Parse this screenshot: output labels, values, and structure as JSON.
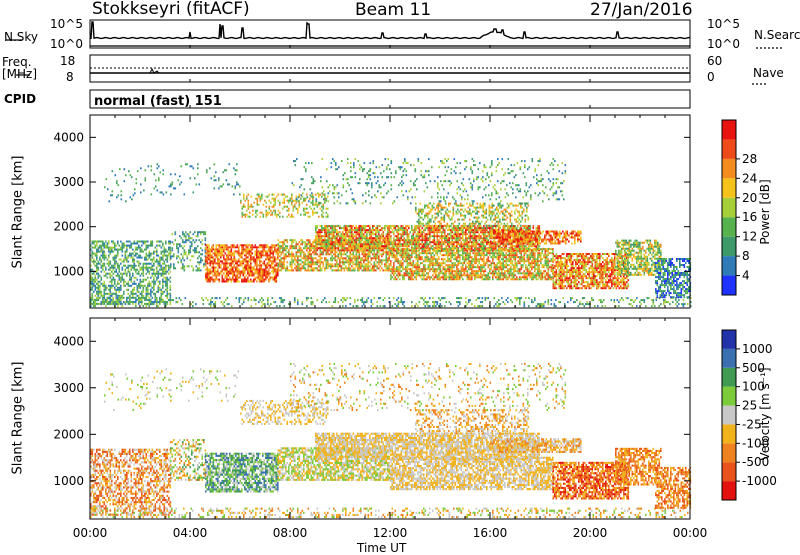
{
  "header": {
    "station": "Stokkseyri (fitACF)",
    "beam": "Beam 11",
    "date": "27/Jan/2016"
  },
  "summary": {
    "nsky_label": "N.Sky",
    "nsky_ticks": [
      "10^5",
      "10^0"
    ],
    "nsearch_label": "N.Search",
    "nsearch_ticks": [
      "10^5",
      "10^0"
    ],
    "freq_label": "Freq.",
    "freq_unit": "[MHz]",
    "freq_ticks": [
      "18",
      "8"
    ],
    "nave_label": "Nave",
    "nave_ticks": [
      "60",
      "0"
    ],
    "cpid_label": "CPID",
    "cpid_value": "normal (fast) 151"
  },
  "chart_data": [
    {
      "type": "heatmap",
      "name": "power",
      "ylabel": "Slant Range [km]",
      "xlabel": "Time UT",
      "xlim": [
        "00:00",
        "24:00"
      ],
      "ylim": [
        180,
        4500
      ],
      "yticks": [
        1000,
        2000,
        3000,
        4000
      ],
      "xticks": [
        "00:00",
        "04:00",
        "08:00",
        "12:00",
        "16:00",
        "20:00",
        "00:00"
      ],
      "colorbar": {
        "label": "Power [dB]",
        "ticks": [
          "4",
          "8",
          "12",
          "16",
          "20",
          "24",
          "28"
        ],
        "colors": [
          "#1f32ff",
          "#2e7bb8",
          "#3e9a6a",
          "#57b24e",
          "#a6cf3a",
          "#f4c21b",
          "#f38b1e",
          "#ee4a1a",
          "#e8120e"
        ]
      }
    },
    {
      "type": "heatmap",
      "name": "velocity",
      "ylabel": "Slant Range [km]",
      "xlabel": "Time UT",
      "xlim": [
        "00:00",
        "24:00"
      ],
      "ylim": [
        180,
        4500
      ],
      "yticks": [
        1000,
        2000,
        3000,
        4000
      ],
      "xticks": [
        "00:00",
        "04:00",
        "08:00",
        "12:00",
        "16:00",
        "20:00",
        "00:00"
      ],
      "colorbar": {
        "label": "Velocity [m s⁻¹]",
        "ticks": [
          "1000",
          "500",
          "100",
          "25",
          "-25",
          "-100",
          "-500",
          "-1000"
        ],
        "colors": [
          "#2233aa",
          "#3a6fb0",
          "#3f9a52",
          "#7ccb3b",
          "#c8c8c8",
          "#f2b21c",
          "#ee8120",
          "#e9521a",
          "#e4120e"
        ]
      }
    }
  ],
  "footer": {
    "xlabel": "Time UT"
  }
}
